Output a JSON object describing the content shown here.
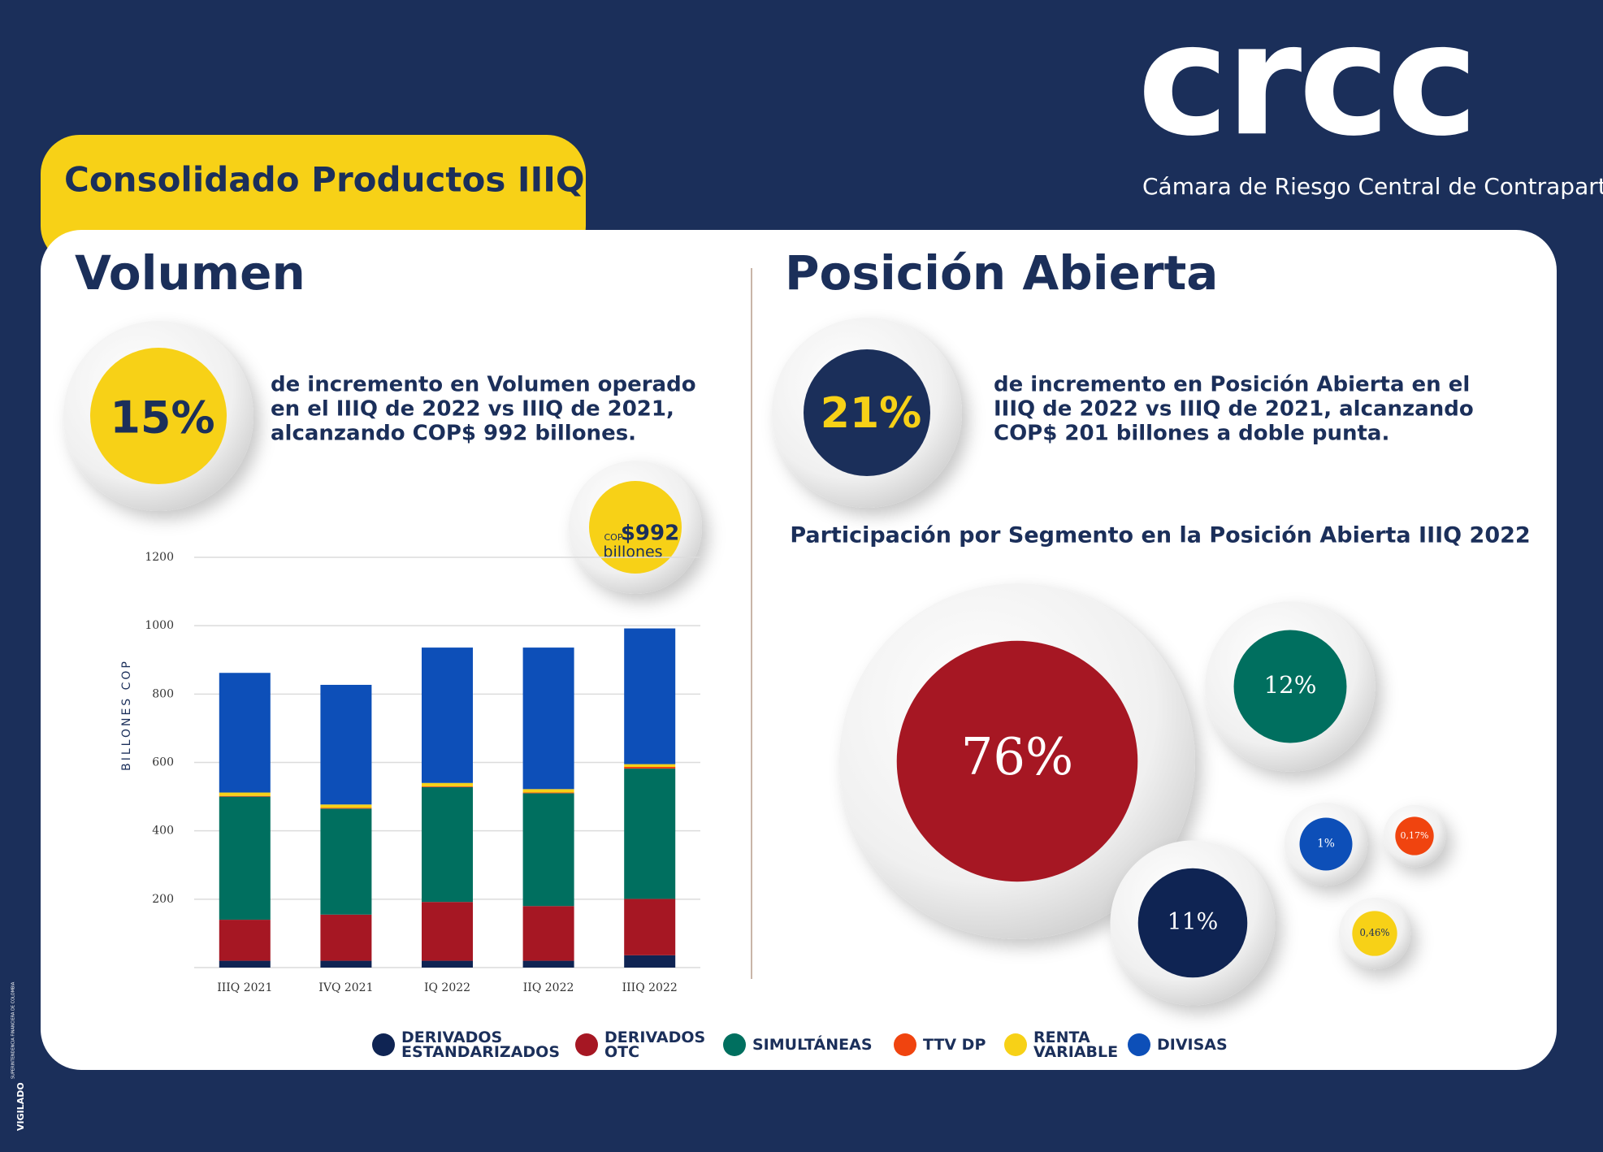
{
  "header": {
    "title": "Consolidado Productos IIIQ"
  },
  "logo": {
    "mark": "crcc",
    "subtitle": "Cámara de Riesgo Central de Contraparte"
  },
  "volumen": {
    "title": "Volumen",
    "stat": "15%",
    "lines": [
      "de incremento en Volumen operado",
      "en el IIIQ de 2022 vs IIIQ de 2021,",
      "alcanzando COP$ 992 billones."
    ]
  },
  "posicion": {
    "title": "Posición Abierta",
    "stat": "21%",
    "lines": [
      "de incremento en Posición Abierta en el",
      "IIIQ de 2022 vs IIIQ de 2021, alcanzando",
      "COP$ 201 billones a doble punta."
    ]
  },
  "footer": {
    "vigilado": "VIGILADO",
    "regulator": "SUPERINTENDENCIA FINANCIERA DE COLOMBIA"
  },
  "chart_data": [
    {
      "type": "bar",
      "stacked": true,
      "ylabel": "BILLONES COP",
      "categories": [
        "IIIQ 2021",
        "IVQ 2021",
        "IQ 2022",
        "IIQ 2022",
        "IIIQ 2022"
      ],
      "series": [
        {
          "name": "DERIVADOS ESTANDARIZADOS",
          "color": "#0f2453",
          "values": [
            20,
            20,
            20,
            20,
            36
          ]
        },
        {
          "name": "DERIVADOS OTC",
          "color": "#a61723",
          "values": [
            120,
            135,
            172,
            160,
            165
          ]
        },
        {
          "name": "SIMULTÁNEAS",
          "color": "#006f5f",
          "values": [
            360,
            310,
            336,
            330,
            381
          ]
        },
        {
          "name": "TTV DP",
          "color": "#f0440f",
          "values": [
            2,
            2,
            2,
            2,
            5
          ]
        },
        {
          "name": "RENTA VARIABLE",
          "color": "#f7d117",
          "values": [
            10,
            10,
            10,
            10,
            8
          ]
        },
        {
          "name": "DIVISAS",
          "color": "#0d4fb8",
          "values": [
            350,
            350,
            396,
            414,
            397
          ]
        }
      ],
      "ylim": [
        0,
        1200
      ],
      "yticks": [
        200,
        400,
        600,
        800,
        1000,
        1200
      ],
      "grid": true,
      "callout": {
        "currency": "COP",
        "amount": "$992",
        "unit": "billones"
      }
    },
    {
      "type": "bubble",
      "title": "Participación por Segmento en la Posición Abierta IIIQ 2022",
      "values": [
        76,
        12,
        11,
        1,
        0.17,
        0.46
      ],
      "value_labels": [
        "76%",
        "12%",
        "11%",
        "1%",
        "0,17%",
        "0,46%"
      ],
      "colors": [
        "#a61723",
        "#006f5f",
        "#0f2453",
        "#0d4fb8",
        "#f0440f",
        "#f7d117"
      ]
    }
  ]
}
